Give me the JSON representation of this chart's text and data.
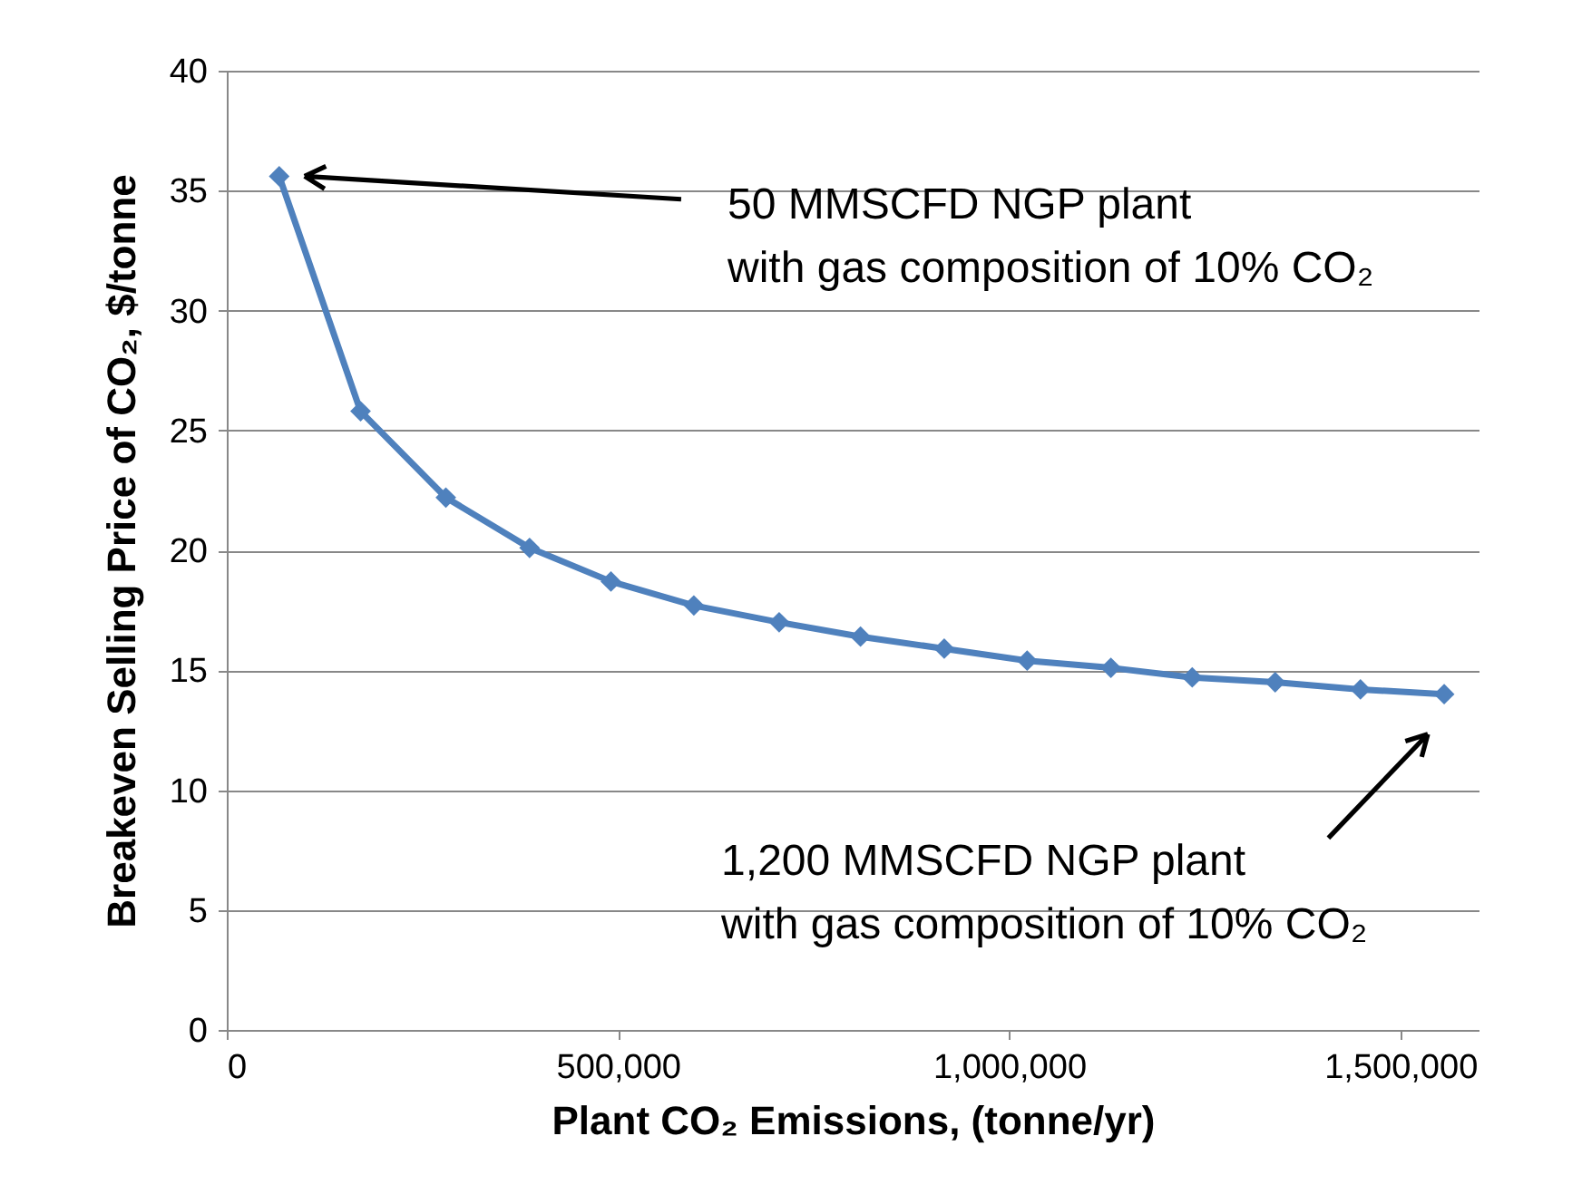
{
  "chart_data": {
    "type": "line",
    "xlabel": "Plant CO₂ Emissions, (tonne/yr)",
    "ylabel": "Breakeven Selling Price of CO₂, $/tonne",
    "x": [
      67000,
      171000,
      280000,
      387000,
      491000,
      597000,
      706000,
      810000,
      917000,
      1023000,
      1130000,
      1234000,
      1340000,
      1449000,
      1556000
    ],
    "series": [
      {
        "color": "#4f81bd",
        "values": [
          35.6,
          25.8,
          22.2,
          20.1,
          18.7,
          17.7,
          17.0,
          16.4,
          15.9,
          15.4,
          15.1,
          14.7,
          14.5,
          14.2,
          14.0
        ]
      }
    ],
    "xlim": [
      0,
      1600000
    ],
    "xticks": [
      {
        "value": 0,
        "label": "0"
      },
      {
        "value": 500000,
        "label": "500,000"
      },
      {
        "value": 1000000,
        "label": "1,000,000"
      },
      {
        "value": 1500000,
        "label": "1,500,000"
      }
    ],
    "ylim": [
      0,
      40
    ],
    "yticks": [
      0,
      5,
      10,
      15,
      20,
      25,
      30,
      35,
      40
    ],
    "grid": "y",
    "marker": "diamond",
    "line_style": "solid",
    "annotations": [
      "50 MMSCFD NGP plant\nwith gas composition of 10% CO₂",
      "1,200 MMSCFD NGP plant\nwith gas composition of 10% CO₂"
    ]
  }
}
